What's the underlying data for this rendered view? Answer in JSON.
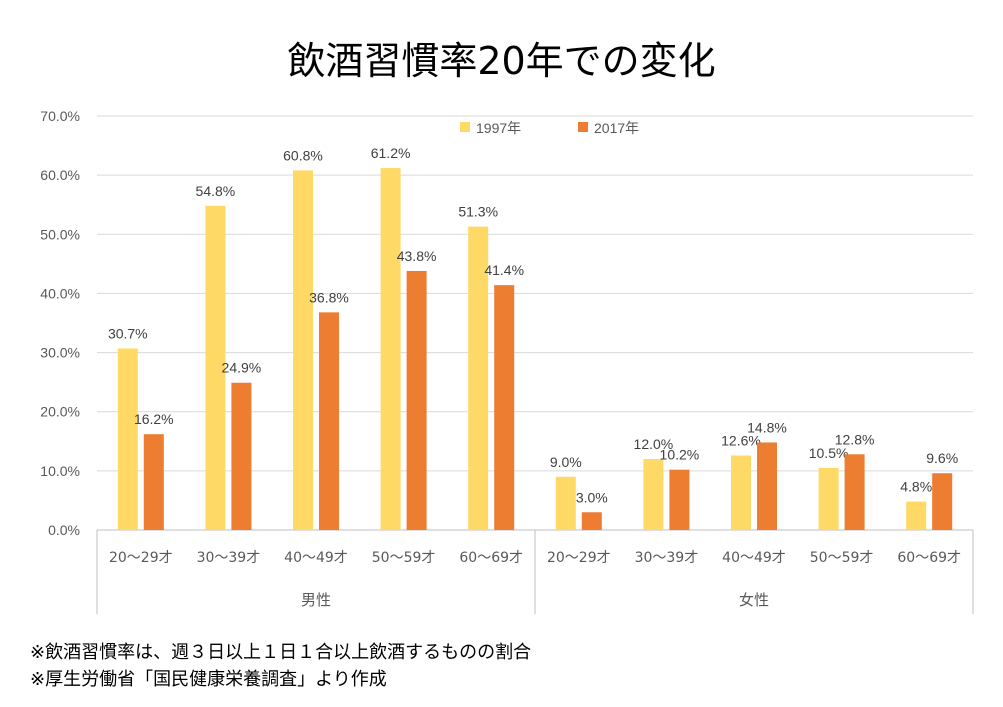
{
  "chart_data": {
    "type": "bar",
    "title": "飲酒習慣率20年での変化",
    "groups": [
      {
        "name": "男性",
        "categories": [
          "20〜29才",
          "30〜39才",
          "40〜49才",
          "50〜59才",
          "60〜69才"
        ]
      },
      {
        "name": "女性",
        "categories": [
          "20〜29才",
          "30〜39才",
          "40〜49才",
          "50〜59才",
          "60〜69才"
        ]
      }
    ],
    "series": [
      {
        "name": "1997年",
        "color": "#FFD966",
        "values": [
          30.7,
          54.8,
          60.8,
          61.2,
          51.3,
          9.0,
          12.0,
          12.6,
          10.5,
          4.8
        ],
        "labels": [
          "30.7%",
          "54.8%",
          "60.8%",
          "61.2%",
          "51.3%",
          "9.0%",
          "12.0%",
          "12.6%",
          "10.5%",
          "4.8%"
        ]
      },
      {
        "name": "2017年",
        "color": "#ED7D31",
        "values": [
          16.2,
          24.9,
          36.8,
          43.8,
          41.4,
          3.0,
          10.2,
          14.8,
          12.8,
          9.6
        ],
        "labels": [
          "16.2%",
          "24.9%",
          "36.8%",
          "43.8%",
          "41.4%",
          "3.0%",
          "10.2%",
          "14.8%",
          "12.8%",
          "9.6%"
        ]
      }
    ],
    "y_ticks": [
      "0.0%",
      "10.0%",
      "20.0%",
      "30.0%",
      "40.0%",
      "50.0%",
      "60.0%",
      "70.0%"
    ],
    "ylim": [
      0,
      70
    ],
    "grid": true,
    "legend": "top-center"
  },
  "notes": [
    "※飲酒習慣率は、週３日以上１日１合以上飲酒するものの割合",
    "※厚生労働省「国民健康栄養調査」より作成"
  ]
}
